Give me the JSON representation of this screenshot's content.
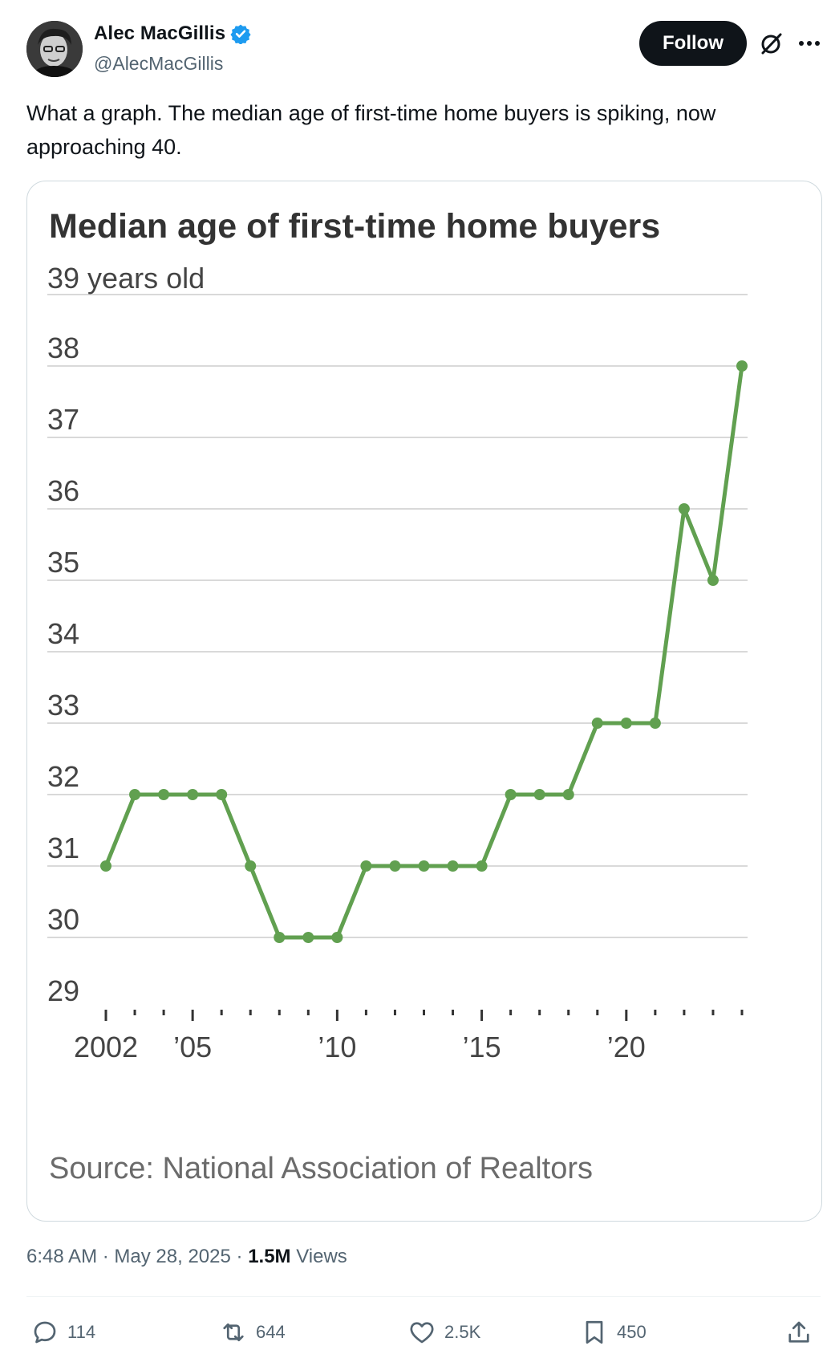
{
  "author": {
    "display_name": "Alec MacGillis",
    "handle": "@AlecMacGillis",
    "verified": true,
    "verified_color": "#1d9bf0"
  },
  "header": {
    "follow_label": "Follow",
    "grok_icon": "grok-icon",
    "more_icon": "more-horizontal-icon"
  },
  "tweet": {
    "text": "What a graph. The median age of first-time home buyers is spiking, now approaching 40."
  },
  "chart_data": {
    "type": "line",
    "title": "Median age of first-time home buyers",
    "ylabel": "years old",
    "y_top_label": "39 years old",
    "ylim": [
      29,
      39
    ],
    "y_ticks": [
      "38",
      "37",
      "36",
      "35",
      "34",
      "33",
      "32",
      "31",
      "30",
      "29"
    ],
    "x_tick_labels": [
      {
        "year": 2002,
        "label": "2002"
      },
      {
        "year": 2005,
        "label": "’05"
      },
      {
        "year": 2010,
        "label": "’10"
      },
      {
        "year": 2015,
        "label": "’15"
      },
      {
        "year": 2020,
        "label": "’20"
      }
    ],
    "xlim": [
      2002,
      2024
    ],
    "series": [
      {
        "color": "#61a050",
        "x": [
          2002,
          2003,
          2004,
          2005,
          2006,
          2007,
          2008,
          2009,
          2010,
          2011,
          2012,
          2013,
          2014,
          2015,
          2016,
          2017,
          2018,
          2019,
          2020,
          2021,
          2022,
          2023,
          2024
        ],
        "values": [
          31,
          32,
          32,
          32,
          32,
          31,
          30,
          30,
          30,
          31,
          31,
          31,
          31,
          31,
          32,
          32,
          32,
          33,
          33,
          33,
          36,
          35,
          38
        ]
      }
    ],
    "grid": true,
    "source": "Source: National Association of Realtors"
  },
  "meta": {
    "time": "6:48 AM",
    "separator": "·",
    "date": "May 28, 2025",
    "views_count": "1.5M",
    "views_label": "Views"
  },
  "actions": {
    "replies": "114",
    "reposts": "644",
    "likes": "2.5K",
    "bookmarks": "450"
  }
}
